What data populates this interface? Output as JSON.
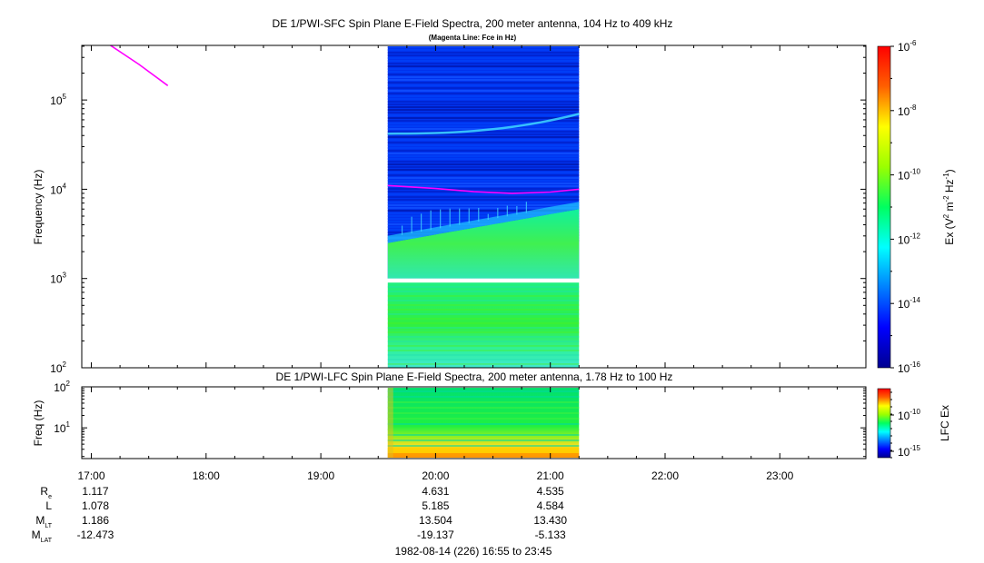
{
  "chart_data": [
    {
      "type": "heatmap",
      "title": "DE 1/PWI-SFC  Spin Plane E-Field Spectra, 200 meter antenna, 104 Hz to 409 kHz",
      "subtitle": "(Magenta Line: Fce in Hz)",
      "ylabel": "Frequency (Hz)",
      "yscale": "log",
      "ylim": [
        100,
        409000
      ],
      "yticks": [
        {
          "exp": "5",
          "value": 100000
        },
        {
          "exp": "4",
          "value": 10000
        },
        {
          "exp": "3",
          "value": 1000
        },
        {
          "exp": "2",
          "value": 100
        }
      ],
      "tick_base": "10",
      "data_time_range": [
        "19:35",
        "21:15"
      ],
      "gap_frequency_range": [
        900,
        1000
      ],
      "spectral_regions": [
        {
          "f_lo": 100,
          "f_hi": 900,
          "level": "green"
        },
        {
          "f_lo": 1000,
          "edge_start_hz": 2500,
          "edge_end_hz": 6000,
          "level": "green"
        },
        {
          "f_hi": 409000,
          "level": "blue"
        }
      ],
      "fce_line": {
        "color": "#ff00ff",
        "segments": [
          {
            "times": [
              "17:10",
              "17:25",
              "17:40"
            ],
            "values_hz": [
              409000,
              250000,
              145000
            ]
          },
          {
            "times": [
              "19:35",
              "20:00",
              "20:20",
              "20:40",
              "21:00",
              "21:15"
            ],
            "values_hz": [
              11000,
              10200,
              9400,
              9000,
              9300,
              10000
            ]
          }
        ]
      },
      "colorbar": {
        "label_text": "Ex (V",
        "label_sup1": "2",
        "label_mid": " m",
        "label_sup2": "-2",
        "label_mid2": " Hz",
        "label_sup3": "-1",
        "label_end": ")",
        "range": [
          1e-16,
          1e-06
        ],
        "ticks": [
          {
            "base": "10",
            "exp": "-6"
          },
          {
            "base": "10",
            "exp": "-8"
          },
          {
            "base": "10",
            "exp": "-10"
          },
          {
            "base": "10",
            "exp": "-12"
          },
          {
            "base": "10",
            "exp": "-14"
          },
          {
            "base": "10",
            "exp": "-16"
          }
        ]
      }
    },
    {
      "type": "heatmap",
      "title": "DE 1/PWI-LFC  Spin Plane E-Field Spectra, 200 meter antenna, 1.78 Hz to 100 Hz",
      "ylabel": "Freq (Hz)",
      "yscale": "log",
      "ylim": [
        1.78,
        100
      ],
      "yticks": [
        {
          "exp": "2",
          "value": 100
        },
        {
          "exp": "1",
          "value": 10
        }
      ],
      "tick_base": "10",
      "data_time_range": [
        "19:35",
        "21:15"
      ],
      "colorbar": {
        "label": "LFC Ex",
        "ticks": [
          {
            "base": "10",
            "exp": "-10"
          },
          {
            "base": "10",
            "exp": "-15"
          }
        ]
      }
    }
  ],
  "time_axis": {
    "range": [
      "16:55",
      "23:45"
    ],
    "ticks": [
      "17:00",
      "18:00",
      "19:00",
      "20:00",
      "21:00",
      "22:00",
      "23:00"
    ]
  },
  "ephemeris": {
    "rows": [
      {
        "label": "R",
        "sub": "e",
        "values": [
          "1.117",
          "4.631",
          "4.535"
        ]
      },
      {
        "label": "L",
        "sub": "",
        "values": [
          "1.078",
          "5.185",
          "4.584"
        ]
      },
      {
        "label": "M",
        "sub": "LT",
        "values": [
          "1.186",
          "13.504",
          "13.430"
        ]
      },
      {
        "label": "M",
        "sub": "LAT",
        "values": [
          "-12.473",
          "-19.137",
          "-5.133"
        ]
      }
    ],
    "value_times": [
      "16:55",
      "20:00",
      "21:00"
    ]
  },
  "footer": "1982-08-14 (226) 16:55 to 23:45"
}
